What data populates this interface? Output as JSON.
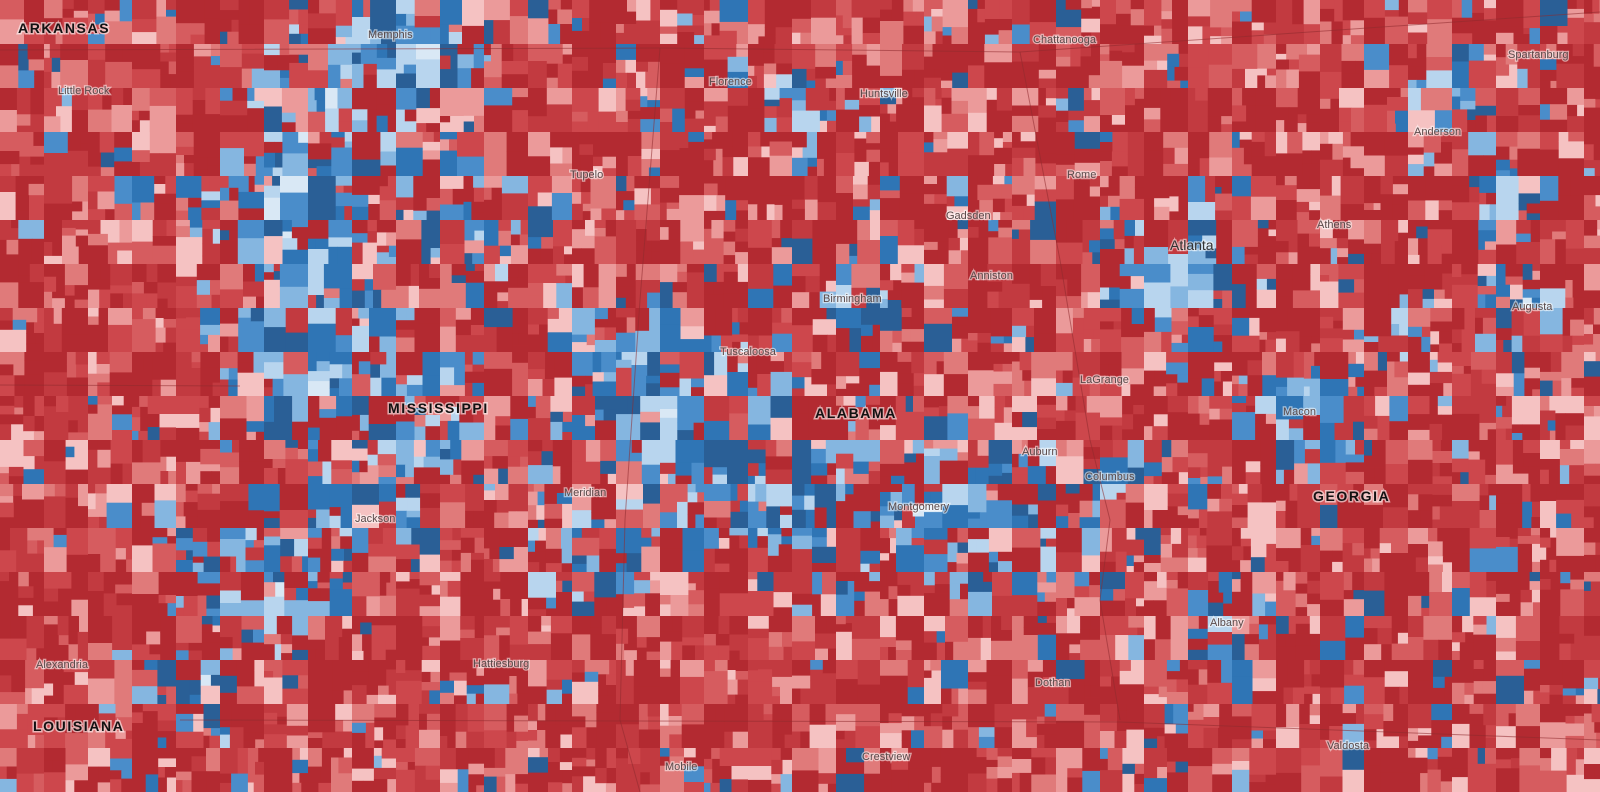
{
  "map": {
    "states": [
      "ARKANSAS",
      "MISSISSIPPI",
      "ALABAMA",
      "GEORGIA",
      "LOUISIANA"
    ],
    "cities": [
      "Memphis",
      "Little Rock",
      "Chattanooga",
      "Florence",
      "Huntsville",
      "Spartanburg",
      "Anderson",
      "Tupelo",
      "Rome",
      "Gadsden",
      "Athens",
      "Atlanta",
      "Anniston",
      "Birmingham",
      "Augusta",
      "Tuscaloosa",
      "LaGrange",
      "Macon",
      "Auburn",
      "Meridian",
      "Columbus",
      "Jackson",
      "Montgomery",
      "Albany",
      "Alexandria",
      "Hattiesburg",
      "Dothan",
      "Valdosta",
      "Crestview",
      "Mobile"
    ]
  }
}
